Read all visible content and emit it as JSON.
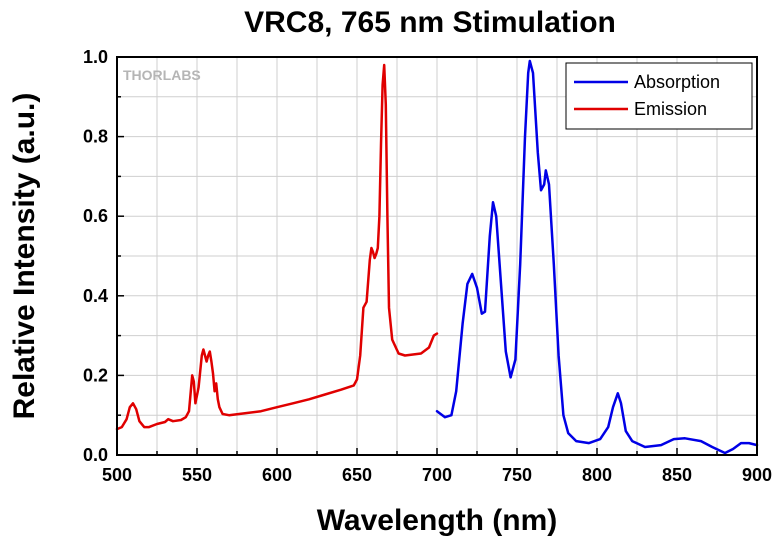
{
  "chart_data": {
    "type": "line",
    "title": "VRC8, 765 nm Stimulation",
    "xlabel": "Wavelength (nm)",
    "ylabel": "Relative Intensity (a.u.)",
    "xlim": [
      500,
      900
    ],
    "ylim": [
      0,
      1.0
    ],
    "xticks": [
      500,
      550,
      600,
      650,
      700,
      750,
      800,
      850,
      900
    ],
    "xtick_labels": [
      "500",
      "550",
      "600",
      "650",
      "700",
      "750",
      "800",
      "850",
      "900"
    ],
    "yticks": [
      0,
      0.2,
      0.4,
      0.6,
      0.8,
      1.0
    ],
    "ytick_labels": [
      "0.0",
      "0.2",
      "0.4",
      "0.6",
      "0.8",
      "1.0"
    ],
    "grid": true,
    "legend_position": "top-right",
    "watermark": "THORLABS",
    "series": [
      {
        "name": "Absorption",
        "color": "#0000e6",
        "points": [
          [
            700,
            0.11
          ],
          [
            705,
            0.095
          ],
          [
            709,
            0.1
          ],
          [
            712,
            0.16
          ],
          [
            716,
            0.33
          ],
          [
            719,
            0.43
          ],
          [
            722,
            0.455
          ],
          [
            725,
            0.42
          ],
          [
            728,
            0.355
          ],
          [
            730,
            0.36
          ],
          [
            733,
            0.55
          ],
          [
            735,
            0.635
          ],
          [
            737,
            0.6
          ],
          [
            740,
            0.43
          ],
          [
            743,
            0.26
          ],
          [
            746,
            0.195
          ],
          [
            749,
            0.24
          ],
          [
            752,
            0.48
          ],
          [
            755,
            0.8
          ],
          [
            757,
            0.96
          ],
          [
            758,
            0.99
          ],
          [
            760,
            0.96
          ],
          [
            763,
            0.76
          ],
          [
            765,
            0.665
          ],
          [
            767,
            0.68
          ],
          [
            768,
            0.715
          ],
          [
            770,
            0.68
          ],
          [
            773,
            0.48
          ],
          [
            776,
            0.25
          ],
          [
            779,
            0.1
          ],
          [
            782,
            0.055
          ],
          [
            787,
            0.035
          ],
          [
            795,
            0.03
          ],
          [
            802,
            0.04
          ],
          [
            807,
            0.07
          ],
          [
            810,
            0.12
          ],
          [
            813,
            0.155
          ],
          [
            815,
            0.13
          ],
          [
            818,
            0.06
          ],
          [
            822,
            0.035
          ],
          [
            830,
            0.02
          ],
          [
            840,
            0.025
          ],
          [
            848,
            0.04
          ],
          [
            855,
            0.042
          ],
          [
            865,
            0.035
          ],
          [
            872,
            0.02
          ],
          [
            880,
            0.005
          ],
          [
            885,
            0.015
          ],
          [
            890,
            0.03
          ],
          [
            895,
            0.03
          ],
          [
            900,
            0.025
          ]
        ]
      },
      {
        "name": "Emission",
        "color": "#e00000",
        "points": [
          [
            500,
            0.065
          ],
          [
            503,
            0.07
          ],
          [
            506,
            0.09
          ],
          [
            508,
            0.12
          ],
          [
            510,
            0.13
          ],
          [
            512,
            0.115
          ],
          [
            514,
            0.085
          ],
          [
            517,
            0.07
          ],
          [
            520,
            0.07
          ],
          [
            525,
            0.078
          ],
          [
            530,
            0.083
          ],
          [
            532,
            0.09
          ],
          [
            535,
            0.085
          ],
          [
            540,
            0.088
          ],
          [
            543,
            0.095
          ],
          [
            545,
            0.11
          ],
          [
            547,
            0.2
          ],
          [
            548,
            0.185
          ],
          [
            549,
            0.13
          ],
          [
            551,
            0.17
          ],
          [
            553,
            0.25
          ],
          [
            554,
            0.265
          ],
          [
            556,
            0.235
          ],
          [
            557,
            0.25
          ],
          [
            558,
            0.26
          ],
          [
            559,
            0.235
          ],
          [
            560,
            0.205
          ],
          [
            561,
            0.16
          ],
          [
            562,
            0.18
          ],
          [
            563,
            0.14
          ],
          [
            564,
            0.12
          ],
          [
            566,
            0.103
          ],
          [
            570,
            0.1
          ],
          [
            580,
            0.105
          ],
          [
            590,
            0.11
          ],
          [
            600,
            0.12
          ],
          [
            610,
            0.13
          ],
          [
            620,
            0.14
          ],
          [
            630,
            0.152
          ],
          [
            640,
            0.164
          ],
          [
            648,
            0.175
          ],
          [
            650,
            0.19
          ],
          [
            652,
            0.25
          ],
          [
            654,
            0.37
          ],
          [
            656,
            0.385
          ],
          [
            658,
            0.49
          ],
          [
            659,
            0.52
          ],
          [
            660,
            0.51
          ],
          [
            661,
            0.495
          ],
          [
            662,
            0.505
          ],
          [
            663,
            0.52
          ],
          [
            664,
            0.6
          ],
          [
            665,
            0.78
          ],
          [
            666,
            0.93
          ],
          [
            667,
            0.98
          ],
          [
            668,
            0.88
          ],
          [
            669,
            0.6
          ],
          [
            670,
            0.37
          ],
          [
            672,
            0.29
          ],
          [
            676,
            0.255
          ],
          [
            680,
            0.25
          ],
          [
            690,
            0.255
          ],
          [
            695,
            0.27
          ],
          [
            698,
            0.3
          ],
          [
            700,
            0.305
          ]
        ]
      }
    ]
  }
}
